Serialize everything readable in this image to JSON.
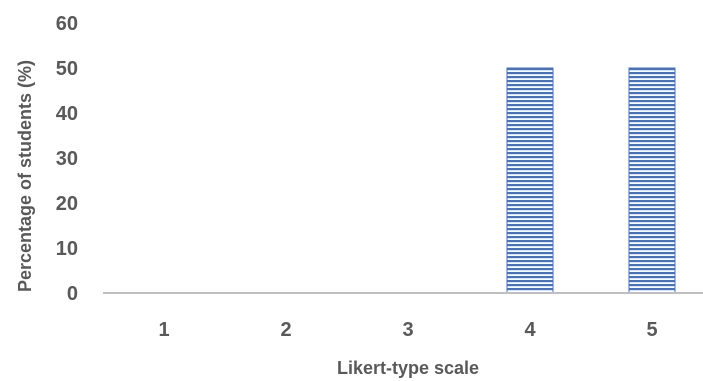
{
  "chart_data": {
    "type": "bar",
    "title": "",
    "xlabel": "Likert-type scale",
    "ylabel": "Percentage of students (%)",
    "categories": [
      "1",
      "2",
      "3",
      "4",
      "5"
    ],
    "values": [
      0,
      0,
      0,
      50,
      50
    ],
    "ylim": [
      0,
      60
    ],
    "yticks": [
      "0",
      "10",
      "20",
      "30",
      "40",
      "50",
      "60"
    ],
    "grid": false,
    "legend": "none",
    "bar_color": "#4472C4",
    "bar_pattern": "horizontal-stripes"
  }
}
